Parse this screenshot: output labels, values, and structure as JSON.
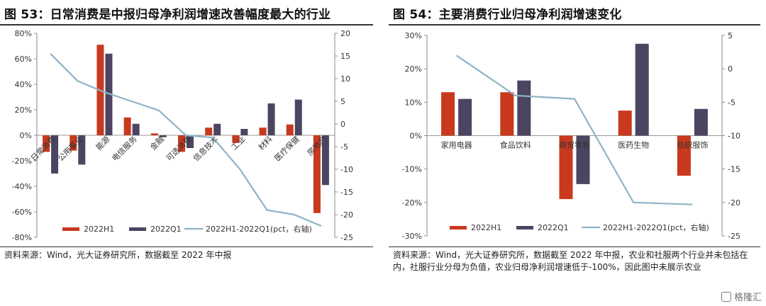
{
  "charts": {
    "left": {
      "title": "图 53：日常消费是中报归母净利润增速改善幅度最大的行业",
      "source": "资料来源：Wind，光大证券研究所，数据截至 2022 年中报",
      "chart_data": {
        "type": "bar",
        "categories": [
          "日常消费",
          "公用事业",
          "能源",
          "电信服务",
          "金融",
          "可选消费",
          "信息技术",
          "工业",
          "材料",
          "医疗保健",
          "房地产"
        ],
        "series": [
          {
            "name": "2022H1",
            "type": "bar",
            "axis": "left",
            "color": "#c8391e",
            "values": [
              -13,
              -12,
              71,
              14,
              1.5,
              -13,
              6,
              -6,
              6,
              8.5,
              -61
            ]
          },
          {
            "name": "2022Q1",
            "type": "bar",
            "axis": "left",
            "color": "#4b4562",
            "values": [
              -30,
              -23,
              64,
              9,
              -1.5,
              -10,
              9,
              5,
              25,
              28,
              -39
            ]
          },
          {
            "name": "2022H1-2022Q1(pct，右轴)",
            "type": "line",
            "axis": "right",
            "color": "#8fb3c7",
            "values": [
              15.5,
              9.5,
              7,
              5,
              3,
              -2.5,
              -3,
              -10,
              -19,
              -20,
              -22.5
            ]
          }
        ],
        "y_left": {
          "min": -80,
          "max": 80,
          "step": 20,
          "format": "percent"
        },
        "y_right": {
          "min": -25,
          "max": 20,
          "step": 5
        },
        "legend_position": "bottom-inside",
        "grid": false
      }
    },
    "right": {
      "title": "图 54：主要消费行业归母净利润增速变化",
      "source": "资料来源：Wind，光大证券研究所，数据截至 2022 年中报，农业和社服两个行业并未包括在内，社服行业分母为负值，农业归母净利润增速低于-100%，因此图中未展示农业",
      "chart_data": {
        "type": "bar",
        "categories": [
          "家用电器",
          "食品饮料",
          "商贸零售",
          "医药生物",
          "纺织服饰"
        ],
        "series": [
          {
            "name": "2022H1",
            "type": "bar",
            "axis": "left",
            "color": "#c8391e",
            "values": [
              13,
              13,
              -19,
              7.5,
              -12
            ]
          },
          {
            "name": "2022Q1",
            "type": "bar",
            "axis": "left",
            "color": "#4b4562",
            "values": [
              11,
              16.5,
              -14.5,
              27.5,
              8
            ]
          },
          {
            "name": "2022H1-2022Q1(pct，右轴)",
            "type": "line",
            "axis": "right",
            "color": "#8fb3c7",
            "values": [
              2,
              -4,
              -4.5,
              -20,
              -20.3
            ]
          }
        ],
        "y_left": {
          "min": -30,
          "max": 30,
          "step": 10,
          "format": "percent"
        },
        "y_right": {
          "min": -25,
          "max": 5,
          "step": 5
        },
        "legend_position": "bottom-inside",
        "grid": false
      }
    }
  },
  "watermark": {
    "brand": "格隆汇"
  }
}
